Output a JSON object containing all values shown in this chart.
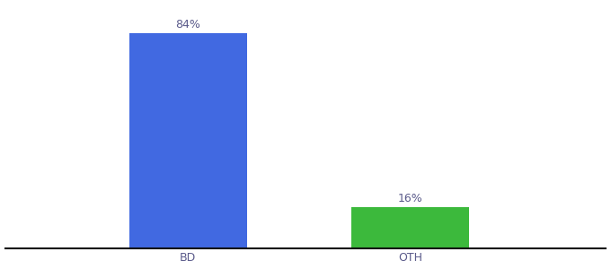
{
  "categories": [
    "BD",
    "OTH"
  ],
  "values": [
    84,
    16
  ],
  "bar_colors": [
    "#4169e1",
    "#3cb93c"
  ],
  "labels": [
    "84%",
    "16%"
  ],
  "background_color": "#ffffff",
  "text_color": "#5a5a8a",
  "axis_line_color": "#111111",
  "xlabel_fontsize": 9,
  "label_fontsize": 9,
  "ylim": [
    0,
    95
  ],
  "bar_width": 0.18,
  "x_positions": [
    0.28,
    0.62
  ],
  "xlim": [
    0.0,
    0.92
  ]
}
